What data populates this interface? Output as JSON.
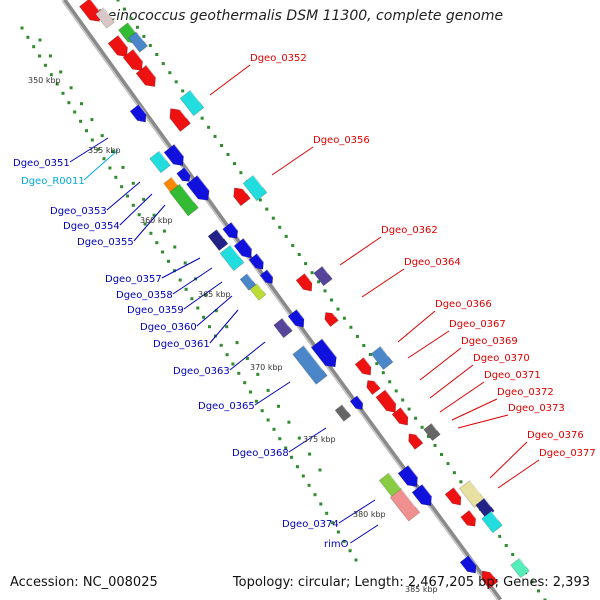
{
  "title": "Deinococcus geothermalis DSM 11300, complete genome",
  "footer": {
    "accession": "Accession: NC_008025",
    "summary": "Topology: circular; Length: 2,467,205 bp; Genes: 2,393"
  },
  "colors": {
    "backbone": "#8e8e8e",
    "dots": "#2e8b2e",
    "label_red": "#dd0000",
    "label_blue": "#0000bb",
    "label_cyan": "#00aadd"
  },
  "scale_labels": [
    "350 kbp",
    "355 kbp",
    "360 kbp",
    "365 kbp",
    "370 kbp",
    "375 kbp",
    "380 kbp",
    "385 kbp"
  ],
  "genes_right": [
    "Dgeo_0352",
    "Dgeo_0356",
    "Dgeo_0362",
    "Dgeo_0364",
    "Dgeo_0366",
    "Dgeo_0367",
    "Dgeo_0369",
    "Dgeo_0370",
    "Dgeo_0371",
    "Dgeo_0372",
    "Dgeo_0373",
    "Dgeo_0376",
    "Dgeo_0377"
  ],
  "genes_left": [
    "Dgeo_0351",
    "Dgeo_R0011",
    "Dgeo_0353",
    "Dgeo_0354",
    "Dgeo_0355",
    "Dgeo_0357",
    "Dgeo_0358",
    "Dgeo_0359",
    "Dgeo_0360",
    "Dgeo_0361",
    "Dgeo_0363",
    "Dgeo_0365",
    "Dgeo_0368",
    "Dgeo_0374",
    "rimO"
  ]
}
